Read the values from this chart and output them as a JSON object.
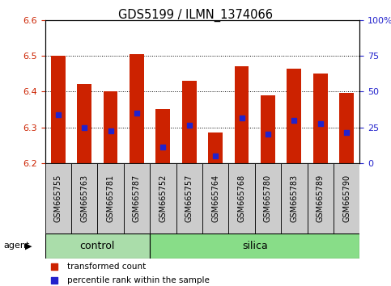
{
  "title": "GDS5199 / ILMN_1374066",
  "samples": [
    "GSM665755",
    "GSM665763",
    "GSM665781",
    "GSM665787",
    "GSM665752",
    "GSM665757",
    "GSM665764",
    "GSM665768",
    "GSM665780",
    "GSM665783",
    "GSM665789",
    "GSM665790"
  ],
  "n_control": 4,
  "bar_bottom": 6.2,
  "bar_tops": [
    6.5,
    6.42,
    6.4,
    6.505,
    6.35,
    6.43,
    6.285,
    6.47,
    6.39,
    6.465,
    6.45,
    6.395
  ],
  "blue_dot_y": [
    6.335,
    6.3,
    6.29,
    6.34,
    6.245,
    6.305,
    6.22,
    6.325,
    6.28,
    6.32,
    6.31,
    6.285
  ],
  "ylim": [
    6.2,
    6.6
  ],
  "yticks_left": [
    6.2,
    6.3,
    6.4,
    6.5,
    6.6
  ],
  "yticks_right_vals": [
    0,
    25,
    50,
    75,
    100
  ],
  "yticks_right_labels": [
    "0",
    "25",
    "50",
    "75",
    "100%"
  ],
  "bar_color": "#cc2200",
  "dot_color": "#2222cc",
  "bar_width": 0.55,
  "control_color": "#aaddaa",
  "silica_color": "#88dd88",
  "bg_color": "#cccccc",
  "ylabel_left_color": "#cc2200",
  "ylabel_right_color": "#2222cc",
  "group_labels": [
    "control",
    "silica"
  ],
  "legend_bar_label": "transformed count",
  "legend_dot_label": "percentile rank within the sample"
}
